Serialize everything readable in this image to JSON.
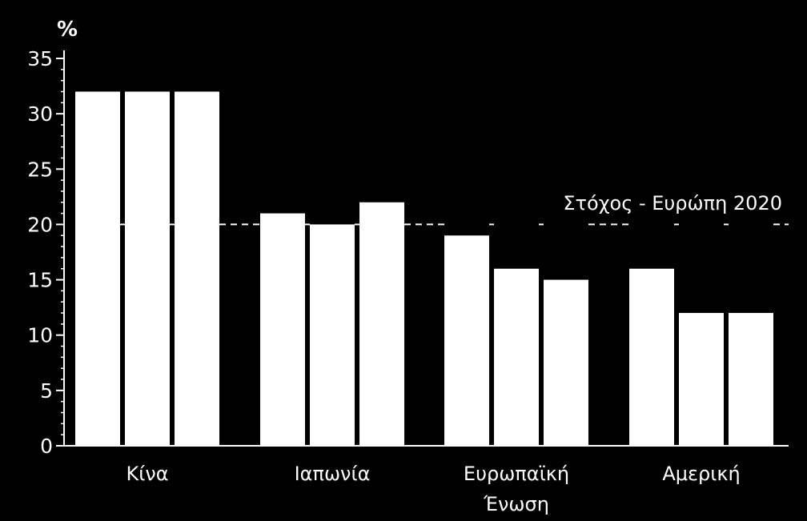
{
  "chart_data": {
    "type": "bar",
    "unit_label": "%",
    "categories": [
      [
        "Κίνα"
      ],
      [
        "Ιαπωνία"
      ],
      [
        "Ευρωπαϊκή",
        "Ένωση"
      ],
      [
        "Αμερική"
      ]
    ],
    "values": [
      [
        32,
        32,
        32
      ],
      [
        21,
        20,
        22
      ],
      [
        19,
        16,
        15
      ],
      [
        16,
        12,
        12
      ]
    ],
    "ylim": [
      0,
      35
    ],
    "yticks": [
      0,
      5,
      10,
      15,
      20,
      25,
      30,
      35
    ],
    "reference_line": {
      "value": 20,
      "label": "Στόχος - Ευρώπη 2020",
      "style": "dashed"
    },
    "grid": false,
    "colors": {
      "background": "#000000",
      "bars": "#ffffff",
      "text": "#ffffff"
    }
  }
}
